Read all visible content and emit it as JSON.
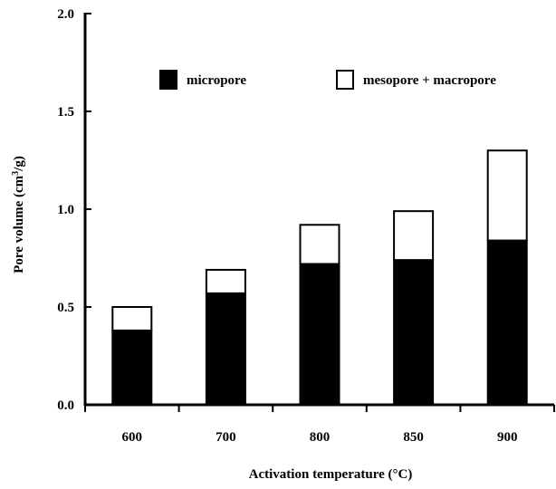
{
  "chart_data": {
    "type": "bar",
    "stacked": true,
    "title": "",
    "xlabel": "Activation temperature (°C)",
    "ylabel_main": "Pore volume (cm",
    "ylabel_sup": "3",
    "ylabel_tail": "/g)",
    "categories": [
      "600",
      "700",
      "800",
      "850",
      "900"
    ],
    "series": [
      {
        "name": "micropore",
        "color": "#000000",
        "values": [
          0.38,
          0.57,
          0.72,
          0.74,
          0.84
        ]
      },
      {
        "name": "mesopore + macropore",
        "color": "#ffffff",
        "values": [
          0.12,
          0.12,
          0.2,
          0.25,
          0.46
        ]
      }
    ],
    "ylim": [
      0.0,
      2.0
    ],
    "yticks": [
      "0.0",
      "0.5",
      "1.0",
      "1.5",
      "2.0"
    ],
    "grid": false,
    "legend_position": "top"
  }
}
